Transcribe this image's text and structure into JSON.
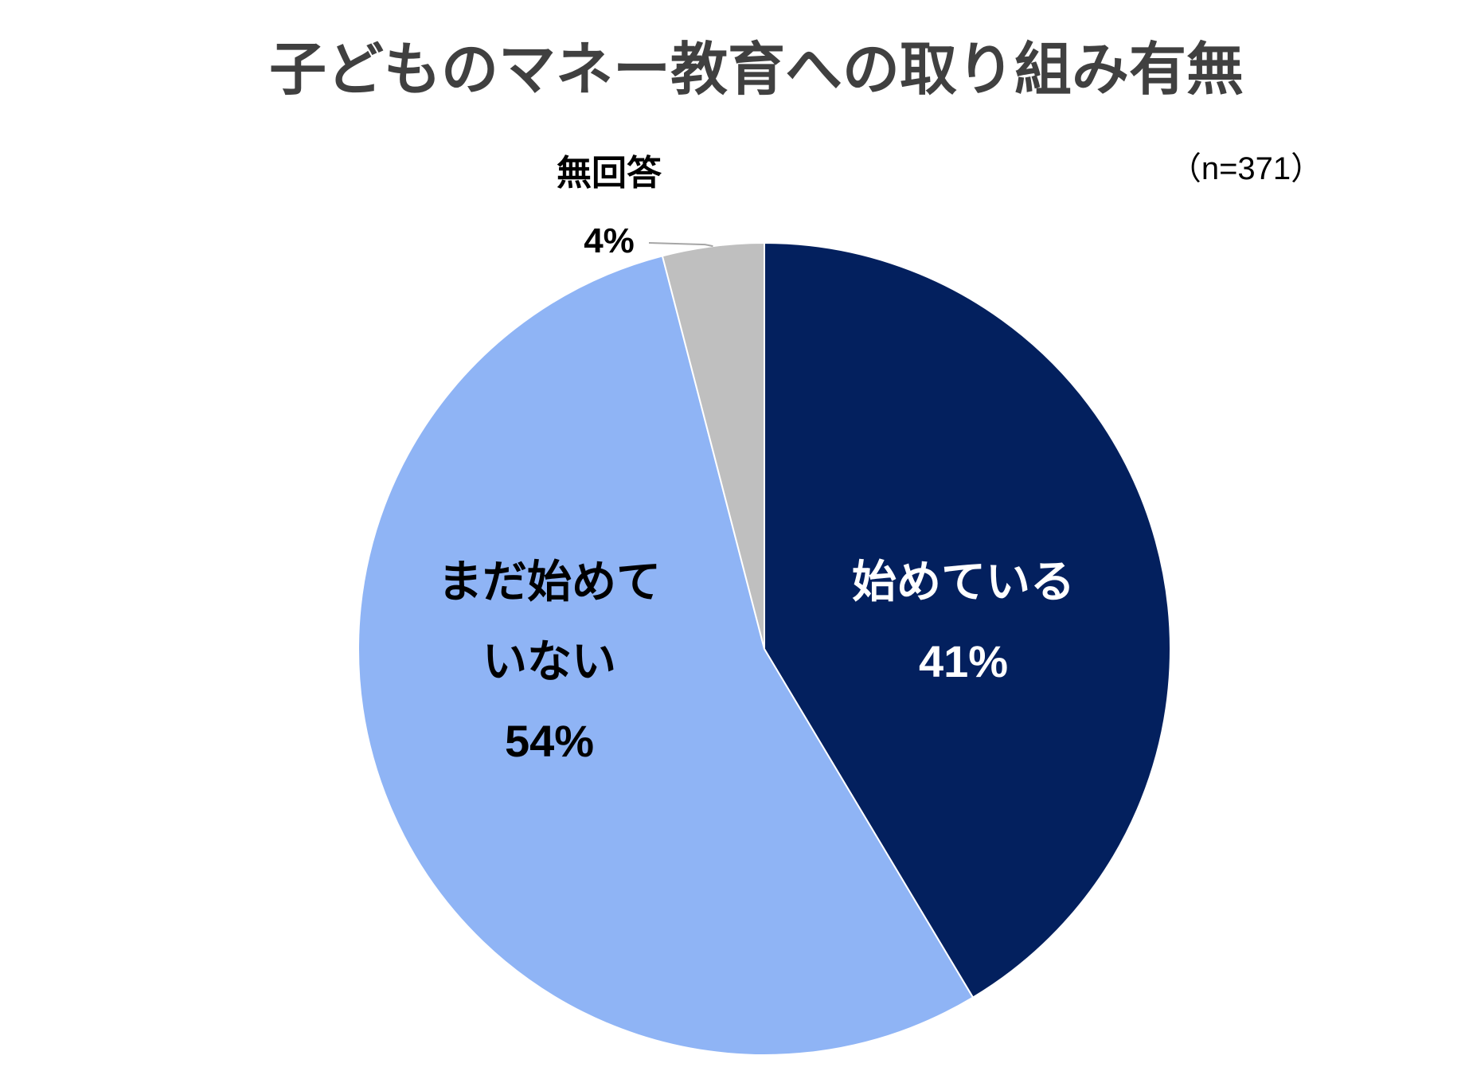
{
  "chart_data": {
    "type": "pie",
    "title": "子どものマネー教育への取り組み有無",
    "sample_size": "（n=371）",
    "start_angle_deg": 0,
    "direction": "clockwise",
    "slices": [
      {
        "label_lines": [
          "始めている"
        ],
        "value": 41,
        "value_label": "41%",
        "color": "#03205e",
        "text_color": "#ffffff"
      },
      {
        "label_lines": [
          "まだ始めて",
          "いない"
        ],
        "value": 54,
        "value_label": "54%",
        "color": "#8fb4f5",
        "text_color": "#000000"
      },
      {
        "label_lines": [
          "無回答"
        ],
        "value": 4,
        "value_label": "4%",
        "color": "#bfbfbf",
        "text_color": "#000000"
      }
    ],
    "leader_line_color": "#a6a6a6",
    "legend": "none"
  }
}
